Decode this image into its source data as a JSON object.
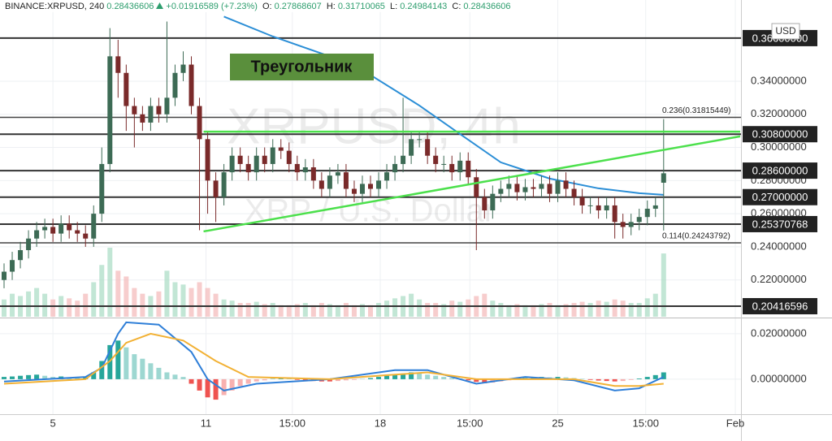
{
  "chart_data": [
    {
      "type": "candlestick",
      "symbol": "BINANCE:XRPUSD, 240",
      "last": "0.28436606",
      "change": "+0.01916589 (+7.23%)",
      "ohlc_labels": [
        "O:",
        "H:",
        "L:",
        "C:"
      ],
      "ohlc_values": [
        "0.27868607",
        "0.31710065",
        "0.24984143",
        "0.28436606"
      ],
      "watermark": "XRPUSD, 4h",
      "watermark_subtitle": "XRP / U.S. Dollar",
      "annotation": "Треугольник",
      "currency": "USD",
      "xlim": [
        -0.5,
        90.5
      ],
      "xticks": [
        {
          "value": 6.0,
          "label": "5"
        },
        {
          "value": 24.8,
          "label": "11"
        },
        {
          "value": 35.4,
          "label": "15:00"
        },
        {
          "value": 46.2,
          "label": "18"
        },
        {
          "value": 57.2,
          "label": "15:00"
        },
        {
          "value": 68.0,
          "label": "25"
        },
        {
          "value": 78.8,
          "label": "15:00"
        },
        {
          "value": 89.8,
          "label": "Feb"
        }
      ],
      "ylim": [
        0.1978,
        0.389
      ],
      "yticks": [
        {
          "value": 0.22,
          "label": "0.22000000"
        },
        {
          "value": 0.24,
          "label": "0.24000000"
        },
        {
          "value": 0.26,
          "label": "0.26000000"
        },
        {
          "value": 0.28,
          "label": "0.28000000"
        },
        {
          "value": 0.3,
          "label": "0.30000000"
        },
        {
          "value": 0.32,
          "label": "0.32000000"
        },
        {
          "value": 0.34,
          "label": "0.34000000"
        }
      ],
      "grid": true,
      "up_color": "#3d6b55",
      "down_color": "#7a2a2a",
      "volume_up_color": "#a8dcc3",
      "volume_down_color": "#f4b8b8",
      "open": [
        0.22,
        0.225,
        0.232,
        0.238,
        0.245,
        0.25,
        0.252,
        0.248,
        0.254,
        0.25,
        0.248,
        0.245,
        0.26,
        0.29,
        0.355,
        0.345,
        0.325,
        0.32,
        0.315,
        0.325,
        0.32,
        0.33,
        0.345,
        0.35,
        0.325,
        0.305,
        0.28,
        0.27,
        0.285,
        0.295,
        0.29,
        0.285,
        0.295,
        0.29,
        0.3,
        0.298,
        0.29,
        0.285,
        0.288,
        0.28,
        0.275,
        0.283,
        0.285,
        0.275,
        0.272,
        0.278,
        0.275,
        0.28,
        0.285,
        0.29,
        0.295,
        0.305,
        0.305,
        0.295,
        0.29,
        0.29,
        0.285,
        0.292,
        0.282,
        0.27,
        0.262,
        0.272,
        0.275,
        0.278,
        0.273,
        0.276,
        0.275,
        0.278,
        0.272,
        0.28,
        0.275,
        0.27,
        0.265,
        0.265,
        0.262,
        0.265,
        0.255,
        0.252,
        0.255,
        0.258,
        0.263,
        0.2787
      ],
      "high": [
        0.23,
        0.237,
        0.243,
        0.25,
        0.255,
        0.257,
        0.257,
        0.259,
        0.259,
        0.255,
        0.253,
        0.265,
        0.3,
        0.372,
        0.365,
        0.35,
        0.33,
        0.325,
        0.33,
        0.33,
        0.376,
        0.35,
        0.358,
        0.355,
        0.33,
        0.31,
        0.285,
        0.29,
        0.3,
        0.3,
        0.295,
        0.3,
        0.3,
        0.305,
        0.305,
        0.303,
        0.295,
        0.293,
        0.293,
        0.285,
        0.288,
        0.29,
        0.29,
        0.28,
        0.283,
        0.283,
        0.285,
        0.29,
        0.295,
        0.33,
        0.31,
        0.31,
        0.31,
        0.3,
        0.295,
        0.295,
        0.297,
        0.297,
        0.287,
        0.275,
        0.277,
        0.28,
        0.283,
        0.283,
        0.281,
        0.281,
        0.283,
        0.283,
        0.285,
        0.285,
        0.28,
        0.275,
        0.27,
        0.27,
        0.27,
        0.27,
        0.26,
        0.26,
        0.263,
        0.268,
        0.27,
        0.3171
      ],
      "low": [
        0.215,
        0.22,
        0.227,
        0.233,
        0.24,
        0.245,
        0.243,
        0.243,
        0.245,
        0.243,
        0.24,
        0.24,
        0.255,
        0.285,
        0.33,
        0.31,
        0.3,
        0.31,
        0.31,
        0.315,
        0.315,
        0.325,
        0.34,
        0.32,
        0.25,
        0.26,
        0.255,
        0.265,
        0.28,
        0.285,
        0.28,
        0.28,
        0.285,
        0.285,
        0.293,
        0.285,
        0.28,
        0.28,
        0.275,
        0.27,
        0.27,
        0.278,
        0.27,
        0.267,
        0.267,
        0.27,
        0.27,
        0.275,
        0.28,
        0.285,
        0.29,
        0.3,
        0.29,
        0.285,
        0.285,
        0.28,
        0.28,
        0.277,
        0.238,
        0.257,
        0.257,
        0.267,
        0.27,
        0.268,
        0.268,
        0.27,
        0.27,
        0.267,
        0.267,
        0.27,
        0.265,
        0.26,
        0.26,
        0.257,
        0.257,
        0.245,
        0.245,
        0.247,
        0.25,
        0.253,
        0.258,
        0.2498
      ],
      "close": [
        0.225,
        0.232,
        0.238,
        0.245,
        0.25,
        0.252,
        0.248,
        0.254,
        0.25,
        0.248,
        0.245,
        0.26,
        0.29,
        0.355,
        0.345,
        0.325,
        0.32,
        0.315,
        0.325,
        0.32,
        0.33,
        0.345,
        0.35,
        0.325,
        0.305,
        0.28,
        0.27,
        0.285,
        0.295,
        0.29,
        0.285,
        0.295,
        0.29,
        0.3,
        0.298,
        0.29,
        0.285,
        0.288,
        0.28,
        0.275,
        0.283,
        0.285,
        0.275,
        0.272,
        0.278,
        0.275,
        0.28,
        0.285,
        0.29,
        0.295,
        0.305,
        0.305,
        0.295,
        0.29,
        0.29,
        0.285,
        0.292,
        0.282,
        0.27,
        0.262,
        0.272,
        0.275,
        0.278,
        0.273,
        0.276,
        0.275,
        0.278,
        0.272,
        0.28,
        0.275,
        0.27,
        0.265,
        0.265,
        0.262,
        0.265,
        0.255,
        0.252,
        0.255,
        0.258,
        0.263,
        0.265,
        0.2844
      ],
      "volume": [
        15,
        20,
        18,
        22,
        25,
        20,
        15,
        18,
        16,
        14,
        20,
        30,
        45,
        60,
        40,
        35,
        25,
        20,
        18,
        22,
        40,
        30,
        28,
        25,
        30,
        25,
        20,
        15,
        14,
        12,
        12,
        13,
        11,
        12,
        10,
        10,
        11,
        12,
        10,
        12,
        11,
        10,
        12,
        10,
        11,
        10,
        12,
        14,
        16,
        18,
        20,
        15,
        12,
        12,
        11,
        14,
        13,
        15,
        18,
        20,
        14,
        12,
        10,
        11,
        10,
        10,
        11,
        12,
        10,
        11,
        12,
        13,
        12,
        14,
        13,
        15,
        14,
        12,
        12,
        16,
        20,
        55
      ],
      "ma": {
        "color": "#2b8ed6",
        "x": [
          27,
          33,
          43,
          51,
          56,
          61,
          67,
          73,
          78,
          81
        ],
        "values": [
          0.379,
          0.367,
          0.3498,
          0.3253,
          0.3081,
          0.291,
          0.2812,
          0.2753,
          0.2724,
          0.2714
        ]
      },
      "levels": [
        {
          "value": 0.366,
          "label": "0.36600000"
        },
        {
          "value": 0.308,
          "label": "0.30800000"
        },
        {
          "value": 0.286,
          "label": "0.28600000"
        },
        {
          "value": 0.27,
          "label": "0.27000000"
        },
        {
          "value": 0.25370768,
          "label": "0.25370768"
        },
        {
          "value": 0.20416596,
          "label": "0.20416596"
        }
      ],
      "fib_levels": [
        {
          "value": 0.31815449,
          "label": "0.236(0.31815449)"
        },
        {
          "value": 0.24243792,
          "label": "0.114(0.24243792)"
        }
      ],
      "trendlines": [
        {
          "color": "#4ce04c",
          "x": [
            24.5,
            90.4
          ],
          "y": [
            0.2493,
            0.3067
          ]
        },
        {
          "color": "#4ce04c",
          "x": [
            24.5,
            90.4
          ],
          "y": [
            0.3095,
            0.3095
          ]
        }
      ]
    },
    {
      "type": "macd",
      "ylim": [
        -0.0154,
        0.0264
      ],
      "yticks": [
        {
          "value": 0.0,
          "label": "0.00000000"
        },
        {
          "value": 0.02,
          "label": "0.02000000"
        }
      ],
      "histogram": [
        0.001,
        0.0012,
        0.0015,
        0.0018,
        0.002,
        0.0015,
        0.001,
        0.0012,
        0.0008,
        0.0005,
        0.001,
        0.003,
        0.008,
        0.015,
        0.017,
        0.014,
        0.011,
        0.009,
        0.007,
        0.005,
        0.003,
        0.002,
        0.001,
        -0.002,
        -0.005,
        -0.008,
        -0.009,
        -0.007,
        -0.005,
        -0.003,
        -0.002,
        -0.001,
        -0.0005,
        0.0003,
        0.0005,
        0.0003,
        -0.0003,
        -0.0005,
        -0.0008,
        -0.001,
        -0.001,
        -0.0008,
        -0.0005,
        -0.0003,
        0.0002,
        0.0005,
        0.001,
        0.0015,
        0.002,
        0.0025,
        0.003,
        0.0028,
        0.002,
        0.0015,
        0.001,
        0.0005,
        0.0003,
        -0.0005,
        -0.0012,
        -0.0018,
        -0.0015,
        -0.001,
        -0.0005,
        0.0002,
        0.0005,
        0.0008,
        0.001,
        0.0008,
        0.001,
        0.0008,
        0.0005,
        0.0002,
        -0.0003,
        -0.0006,
        -0.0008,
        -0.001,
        -0.0008,
        -0.0003,
        0.0003,
        0.001,
        0.0018,
        0.003
      ],
      "up_color": "#26a69a",
      "down_color": "#ef5350",
      "lines": [
        {
          "color": "#2f7fd8",
          "x": [
            0,
            10,
            12,
            14,
            15,
            19,
            23,
            25,
            27,
            31,
            40,
            48,
            52,
            58,
            64,
            70,
            75,
            78,
            81
          ],
          "values": [
            -0.001,
            0.001,
            0.005,
            0.02,
            0.025,
            0.024,
            0.012,
            0.0,
            -0.005,
            -0.002,
            0.0,
            0.004,
            0.004,
            -0.002,
            0.001,
            -0.0005,
            -0.005,
            -0.004,
            0.001
          ]
        },
        {
          "color": "#f2b134",
          "x": [
            0,
            10,
            13,
            15,
            18,
            22,
            26,
            30,
            40,
            48,
            52,
            58,
            64,
            70,
            75,
            78,
            81
          ],
          "values": [
            -0.002,
            0.0,
            0.008,
            0.016,
            0.02,
            0.017,
            0.008,
            0.001,
            0.0,
            0.002,
            0.003,
            0.0,
            0.0,
            0.0,
            -0.003,
            -0.003,
            -0.002
          ]
        }
      ]
    }
  ]
}
